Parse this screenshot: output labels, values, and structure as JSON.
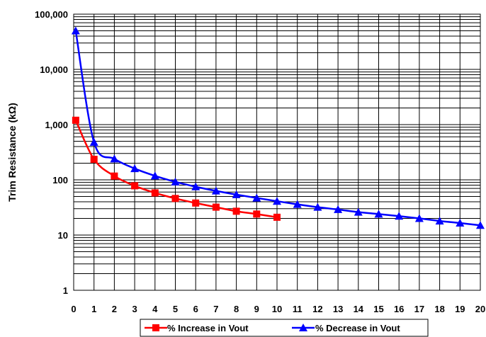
{
  "chart_data": {
    "type": "line",
    "title": "",
    "xlabel": "",
    "ylabel": "Trim Resistance (kΩ)",
    "y_scale": "log",
    "xlim": [
      0,
      20
    ],
    "ylim": [
      1,
      100000
    ],
    "x_ticks": [
      "0",
      "1",
      "2",
      "3",
      "4",
      "5",
      "6",
      "7",
      "8",
      "9",
      "10",
      "11",
      "12",
      "13",
      "14",
      "15",
      "16",
      "17",
      "18",
      "19",
      "20"
    ],
    "y_ticks": [
      {
        "value": 1,
        "label": "1"
      },
      {
        "value": 10,
        "label": "10"
      },
      {
        "value": 100,
        "label": "100"
      },
      {
        "value": 1000,
        "label": "1,000"
      },
      {
        "value": 10000,
        "label": "10,000"
      },
      {
        "value": 100000,
        "label": "100,000"
      }
    ],
    "grid": true,
    "legend_position": "bottom",
    "series": [
      {
        "name": "% Increase in Vout",
        "color": "#ff0000",
        "marker": "square",
        "x": [
          0.1,
          1,
          2,
          3,
          4,
          5,
          6,
          7,
          8,
          9,
          10
        ],
        "y": [
          1200,
          235,
          117,
          78,
          58,
          46,
          38,
          32,
          27,
          24,
          21
        ]
      },
      {
        "name": "% Decrease in Vout",
        "color": "#0000ff",
        "marker": "triangle",
        "x": [
          0.1,
          1,
          2,
          3,
          4,
          5,
          6,
          7,
          8,
          9,
          10,
          11,
          12,
          13,
          14,
          15,
          16,
          17,
          18,
          19,
          20
        ],
        "y": [
          50000,
          480,
          240,
          160,
          118,
          92,
          75,
          63,
          54,
          47,
          41,
          36,
          32,
          29,
          26,
          24,
          22,
          20,
          18,
          16.5,
          15
        ]
      }
    ]
  }
}
